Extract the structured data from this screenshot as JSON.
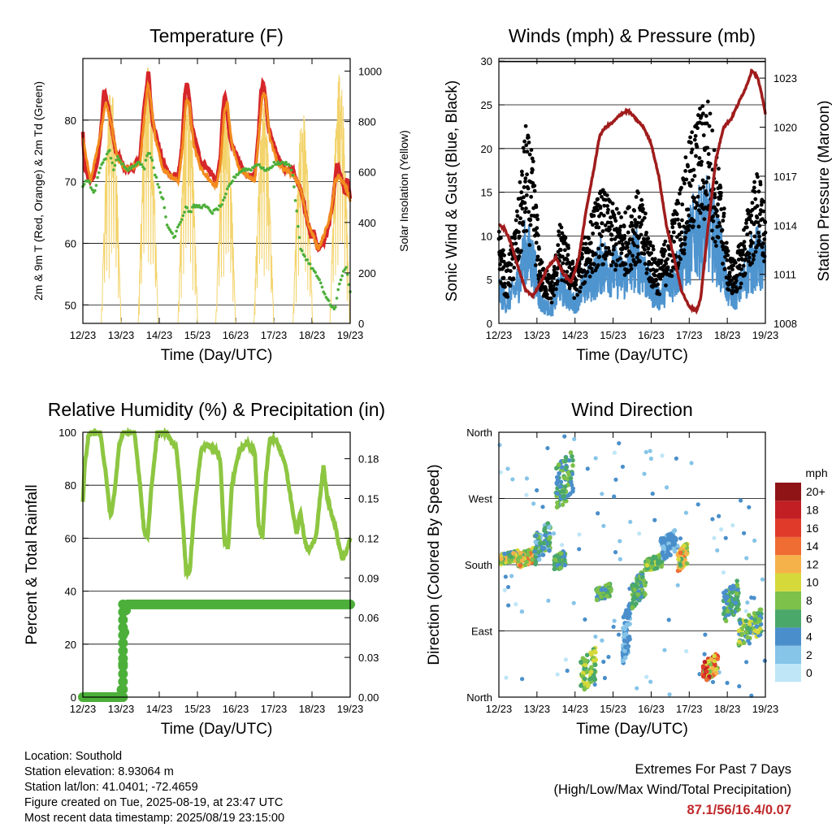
{
  "charts": [
    {
      "id": "temperature",
      "type": "line",
      "title": "Temperature (F)",
      "xlabel": "Time (Day/UTC)",
      "ylabel": "2m & 9m T (Red, Orange) & 2m Td (Green)",
      "ylabel_right": "Solar Insolation (Yellow)",
      "ylim": [
        47,
        90
      ],
      "yticks": [
        50,
        60,
        70,
        80
      ],
      "ylim_right": [
        0,
        1050
      ],
      "yticks_right": [
        0,
        200,
        400,
        600,
        800,
        1000
      ],
      "grid": true
    },
    {
      "id": "winds",
      "type": "scatter",
      "title": "Winds (mph) & Pressure (mb)",
      "xlabel": "Time (Day/UTC)",
      "ylabel": "Sonic Wind & Gust (Blue, Black)",
      "ylabel_right": "Station Pressure (Maroon)",
      "ylim": [
        0,
        30.3
      ],
      "yticks": [
        0,
        5,
        10,
        15,
        20,
        25,
        30
      ],
      "ylim_right": [
        1008,
        1024.2
      ],
      "yticks_right": [
        1008,
        1011,
        1014,
        1017,
        1020,
        1023
      ],
      "grid": true
    },
    {
      "id": "humidity",
      "type": "line",
      "title": "Relative Humidity (%) & Precipitation (in)",
      "xlabel": "Time (Day/UTC)",
      "ylabel": "Percent & Total Rainfall",
      "ylim": [
        0,
        100
      ],
      "yticks": [
        0,
        20,
        40,
        60,
        80,
        100
      ],
      "ylim_right": [
        0,
        0.2
      ],
      "yticks_right": [
        "0.00",
        "0.03",
        "0.06",
        "0.09",
        "0.12",
        "0.15",
        "0.18"
      ],
      "grid": true
    },
    {
      "id": "direction",
      "type": "scatter",
      "title": "Wind Direction",
      "xlabel": "Time (Day/UTC)",
      "ylabel": "Direction (Colored By Speed)",
      "ylim": [
        0,
        360
      ],
      "ytick_labels": [
        "North",
        "East",
        "South",
        "West",
        "North"
      ],
      "grid": true,
      "colorbar": {
        "unit": "mph",
        "labels": [
          "0",
          "2",
          "4",
          "6",
          "8",
          "10",
          "12",
          "14",
          "16",
          "18",
          "20+"
        ],
        "colors": [
          "#bfe6f7",
          "#86c4e8",
          "#4a8fcb",
          "#4aa86a",
          "#7dc04a",
          "#d6d93a",
          "#f6b24a",
          "#ef6c32",
          "#e03a2a",
          "#c11f24",
          "#8e1416"
        ]
      }
    }
  ],
  "x_ticks": [
    "12/23",
    "13/23",
    "14/23",
    "15/23",
    "16/23",
    "17/23",
    "18/23",
    "19/23"
  ],
  "chart_data": [
    {
      "chart": "temperature",
      "type": "line",
      "x_days": [
        12,
        19
      ],
      "series": [
        {
          "color": "#d6262a",
          "x": [
            12,
            12.05,
            12.2,
            12.3,
            12.4,
            12.5,
            12.55,
            12.6,
            12.7,
            12.75,
            12.8,
            12.85,
            12.95,
            13.1,
            13.3,
            13.5,
            13.6,
            13.68,
            13.72,
            13.76,
            13.82,
            13.9,
            14.1,
            14.3,
            14.5,
            14.6,
            14.67,
            14.72,
            14.78,
            14.85,
            15.1,
            15.3,
            15.5,
            15.6,
            15.67,
            15.72,
            15.78,
            15.85,
            16.1,
            16.3,
            16.5,
            16.6,
            16.67,
            16.72,
            16.78,
            16.85,
            17.1,
            17.3,
            17.5,
            17.6,
            17.7,
            17.8,
            17.9,
            17.97,
            18.05,
            18.15,
            18.3,
            18.45,
            18.55,
            18.6,
            18.65,
            18.7,
            18.8,
            18.85,
            18.9,
            18.95,
            19
          ],
          "y": [
            78,
            72,
            70,
            71,
            74,
            80,
            85,
            84,
            81,
            79,
            77,
            75,
            74,
            72,
            72,
            74,
            82,
            86,
            88,
            84,
            80,
            78,
            73,
            71,
            71,
            76,
            84,
            86,
            84,
            79,
            73,
            72,
            70,
            74,
            82,
            84,
            81,
            77,
            73,
            71,
            71,
            78,
            85,
            86,
            84,
            79,
            74,
            72,
            72,
            70,
            69,
            66,
            63,
            61,
            62,
            59,
            60,
            63,
            67,
            70,
            73,
            72,
            70,
            68,
            70,
            70,
            67
          ]
        },
        {
          "color": "#f28c1e",
          "x": [
            12,
            12.2,
            12.5,
            12.6,
            12.75,
            12.9,
            13.1,
            13.5,
            13.6,
            13.7,
            13.76,
            13.9,
            14.1,
            14.5,
            14.6,
            14.7,
            14.78,
            14.9,
            15.1,
            15.5,
            15.6,
            15.7,
            15.78,
            15.9,
            16.1,
            16.5,
            16.6,
            16.7,
            16.78,
            16.9,
            17.1,
            17.5,
            17.7,
            17.9,
            18.05,
            18.15,
            18.3,
            18.5,
            18.6,
            18.7,
            18.9,
            19
          ],
          "y": [
            77,
            70,
            79,
            83,
            79,
            74,
            72,
            73,
            80,
            86,
            84,
            77,
            72,
            70,
            75,
            83,
            83,
            76,
            72,
            69,
            73,
            81,
            83,
            76,
            72,
            70,
            77,
            84,
            84,
            77,
            73,
            71,
            69,
            63,
            61,
            59,
            61,
            65,
            70,
            71,
            69,
            67
          ]
        },
        {
          "color": "#4caf3a",
          "dotted": true,
          "x": [
            12,
            12.05,
            12.15,
            12.3,
            12.4,
            12.5,
            12.6,
            12.7,
            12.8,
            12.9,
            13.0,
            13.2,
            13.4,
            13.5,
            13.6,
            13.7,
            13.8,
            13.9,
            14.0,
            14.1,
            14.2,
            14.3,
            14.4,
            14.5,
            14.6,
            14.7,
            14.8,
            14.9,
            15.0,
            15.2,
            15.4,
            15.6,
            15.7,
            15.8,
            15.9,
            16.0,
            16.2,
            16.4,
            16.6,
            16.7,
            16.8,
            16.9,
            17.0,
            17.2,
            17.4,
            17.5,
            17.6,
            17.7,
            17.8,
            17.9,
            18.0,
            18.1,
            18.2,
            18.3,
            18.4,
            18.5,
            18.6,
            18.7,
            18.8,
            18.9,
            19
          ],
          "y": [
            69,
            70,
            70,
            68,
            71,
            73,
            74,
            75,
            72,
            74,
            73,
            72,
            73,
            73,
            72,
            75,
            74,
            71,
            69,
            67,
            63,
            62,
            61,
            63,
            64,
            66,
            65,
            66,
            66,
            66,
            65,
            66,
            67,
            69,
            70,
            71,
            72,
            72,
            73,
            72,
            72,
            72,
            73,
            73,
            73,
            71,
            65,
            59,
            58,
            57,
            56,
            55,
            54,
            52,
            51,
            50,
            49,
            53,
            55,
            56,
            52
          ]
        }
      ],
      "solar_series": {
        "color": "#f3d36b",
        "peak_days": [
          12.74,
          13.71,
          14.75,
          15.74,
          16.74,
          17.76,
          18.73
        ],
        "peak_values": [
          940,
          1020,
          930,
          880,
          870,
          840,
          1000
        ]
      }
    },
    {
      "chart": "winds",
      "type": "scatter",
      "x_days": [
        12,
        19
      ],
      "wind_blue_env": {
        "x": [
          12,
          12.2,
          12.5,
          12.7,
          12.9,
          13.1,
          13.4,
          13.6,
          13.8,
          14.0,
          14.2,
          14.5,
          14.7,
          15.0,
          15.3,
          15.6,
          15.8,
          16.0,
          16.2,
          16.5,
          16.7,
          16.9,
          17.1,
          17.3,
          17.5,
          17.7,
          17.9,
          18.0,
          18.2,
          18.4,
          18.6,
          18.8,
          19
        ],
        "y": [
          5,
          3,
          6,
          11,
          9,
          3,
          2,
          6,
          4,
          3,
          5,
          7,
          9,
          8,
          7,
          10,
          8,
          5,
          4,
          6,
          8,
          10,
          13,
          14,
          15,
          12,
          9,
          5,
          4,
          6,
          9,
          10,
          8
        ]
      },
      "gust_black_env": {
        "x": [
          12,
          12.2,
          12.5,
          12.7,
          12.9,
          13.1,
          13.4,
          13.6,
          13.8,
          14.0,
          14.2,
          14.5,
          14.7,
          15.0,
          15.3,
          15.6,
          15.8,
          16.0,
          16.2,
          16.5,
          16.7,
          16.9,
          17.1,
          17.3,
          17.5,
          17.7,
          17.9,
          18.0,
          18.2,
          18.4,
          18.6,
          18.8,
          19
        ],
        "y": [
          11,
          6,
          13,
          22,
          18,
          7,
          5,
          11,
          9,
          6,
          9,
          13,
          15,
          13,
          12,
          15,
          13,
          9,
          7,
          11,
          14,
          18,
          22,
          24,
          25,
          19,
          14,
          8,
          7,
          10,
          14,
          17,
          13
        ]
      },
      "pressure_series": {
        "color": "#a01c1c",
        "x": [
          12,
          12.15,
          12.3,
          12.5,
          12.7,
          12.9,
          13.1,
          13.3,
          13.5,
          13.7,
          13.9,
          14.1,
          14.3,
          14.5,
          14.65,
          14.8,
          15.0,
          15.2,
          15.4,
          15.6,
          15.8,
          16.0,
          16.2,
          16.4,
          16.6,
          16.8,
          17.0,
          17.2,
          17.3,
          17.5,
          17.7,
          17.9,
          18.1,
          18.3,
          18.5,
          18.65,
          18.8,
          18.95,
          19
        ],
        "y": [
          1014,
          1013.8,
          1013,
          1011.5,
          1010,
          1009.7,
          1010.5,
          1011.5,
          1012,
          1011,
          1010.5,
          1012,
          1015,
          1017.5,
          1019.5,
          1020,
          1020.3,
          1020.8,
          1021,
          1020.5,
          1020,
          1019,
          1017,
          1014,
          1012,
          1010,
          1009,
          1008.8,
          1009.5,
          1014,
          1018,
          1020,
          1020.5,
          1021.5,
          1022.5,
          1023.5,
          1023,
          1021.5,
          1020.8
        ]
      }
    },
    {
      "chart": "humidity",
      "type": "line",
      "x_days": [
        12,
        19
      ],
      "rh_series": {
        "color": "#8dc641",
        "x": [
          12,
          12.05,
          12.15,
          12.3,
          12.45,
          12.6,
          12.7,
          12.75,
          12.85,
          12.95,
          13.05,
          13.2,
          13.35,
          13.5,
          13.6,
          13.7,
          13.8,
          13.95,
          14.15,
          14.3,
          14.45,
          14.6,
          14.7,
          14.8,
          14.9,
          15.1,
          15.3,
          15.5,
          15.6,
          15.7,
          15.8,
          15.9,
          16.1,
          16.3,
          16.5,
          16.6,
          16.7,
          16.8,
          16.9,
          17.1,
          17.3,
          17.5,
          17.6,
          17.7,
          17.8,
          17.9,
          18.1,
          18.2,
          18.3,
          18.4,
          18.5,
          18.6,
          18.7,
          18.8,
          18.9,
          19
        ],
        "y": [
          73,
          88,
          99,
          100,
          100,
          85,
          70,
          69,
          80,
          95,
          100,
          100,
          100,
          80,
          63,
          61,
          80,
          100,
          100,
          97,
          94,
          70,
          48,
          47,
          68,
          94,
          95,
          93,
          89,
          60,
          55,
          80,
          93,
          96,
          93,
          65,
          60,
          84,
          98,
          96,
          88,
          70,
          62,
          70,
          60,
          55,
          60,
          74,
          87,
          75,
          70,
          65,
          58,
          52,
          55,
          60
        ]
      },
      "precip_series": {
        "color": "#4caf3a",
        "x": [
          12,
          12.9,
          13.0,
          13.02,
          13.05,
          13.08,
          13.1,
          13.15,
          13.2,
          19
        ],
        "y": [
          0,
          0,
          0,
          0.01,
          0.025,
          0.04,
          0.06,
          0.07,
          0.07,
          0.07
        ]
      }
    },
    {
      "chart": "direction",
      "type": "scatter",
      "x_days": [
        12,
        19
      ],
      "clusters": [
        {
          "x": [
            12.05,
            12.5
          ],
          "dir": [
            180,
            200
          ],
          "speed": [
            3,
            13
          ]
        },
        {
          "x": [
            12.5,
            12.95
          ],
          "dir": [
            175,
            205
          ],
          "speed": [
            6,
            15
          ]
        },
        {
          "x": [
            12.95,
            13.35
          ],
          "dir": [
            180,
            240
          ],
          "speed": [
            2,
            8
          ]
        },
        {
          "x": [
            13.5,
            13.95
          ],
          "dir": [
            250,
            340
          ],
          "speed": [
            3,
            9
          ]
        },
        {
          "x": [
            13.45,
            13.75
          ],
          "dir": [
            170,
            200
          ],
          "speed": [
            4,
            8
          ]
        },
        {
          "x": [
            14.15,
            14.55
          ],
          "dir": [
            5,
            70
          ],
          "speed": [
            5,
            11
          ]
        },
        {
          "x": [
            14.55,
            14.95
          ],
          "dir": [
            130,
            155
          ],
          "speed": [
            4,
            9
          ]
        },
        {
          "x": [
            15.25,
            15.45
          ],
          "dir": [
            40,
            140
          ],
          "speed": [
            2,
            5
          ]
        },
        {
          "x": [
            15.5,
            15.85
          ],
          "dir": [
            120,
            175
          ],
          "speed": [
            4,
            9
          ]
        },
        {
          "x": [
            15.85,
            16.3
          ],
          "dir": [
            170,
            195
          ],
          "speed": [
            5,
            10
          ]
        },
        {
          "x": [
            16.25,
            16.7
          ],
          "dir": [
            185,
            230
          ],
          "speed": [
            2,
            5
          ]
        },
        {
          "x": [
            16.7,
            16.95
          ],
          "dir": [
            170,
            210
          ],
          "speed": [
            6,
            14
          ]
        },
        {
          "x": [
            17.35,
            17.75
          ],
          "dir": [
            20,
            60
          ],
          "speed": [
            8,
            18
          ]
        },
        {
          "x": [
            17.9,
            18.3
          ],
          "dir": [
            100,
            160
          ],
          "speed": [
            3,
            8
          ]
        },
        {
          "x": [
            18.3,
            18.9
          ],
          "dir": [
            70,
            120
          ],
          "speed": [
            3,
            11
          ]
        }
      ]
    }
  ],
  "footer": {
    "location": "Location: Southold",
    "elevation": "Station elevation: 8.93064 m",
    "latlon": "Station lat/lon: 41.0401; -72.4659",
    "created": "Figure created on Tue, 2025-08-19, at 23:47 UTC",
    "recent": "Most recent data timestamp: 2025/08/19 23:15:00"
  },
  "extremes": {
    "title": "Extremes For Past 7 Days",
    "subtitle": "(High/Low/Max Wind/Total Precipitation)",
    "values": "87.1/56/16.4/0.07"
  }
}
